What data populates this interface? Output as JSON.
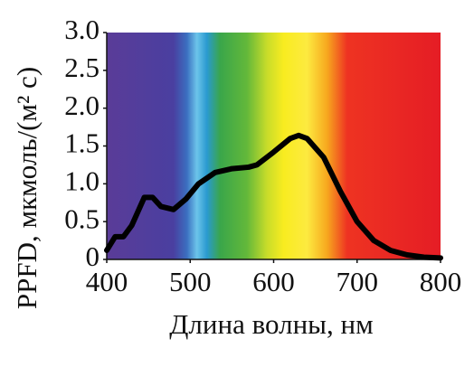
{
  "chart_data": {
    "type": "line",
    "x_label": "Длина волны, нм",
    "y_label": "PPFD, мкмоль/(м² с)",
    "x": [
      400,
      410,
      420,
      430,
      445,
      455,
      465,
      480,
      495,
      510,
      530,
      550,
      570,
      580,
      600,
      620,
      630,
      640,
      660,
      680,
      700,
      720,
      740,
      760,
      780,
      800
    ],
    "series": [
      {
        "color": "#000000",
        "values": [
          0.12,
          0.3,
          0.3,
          0.45,
          0.82,
          0.82,
          0.7,
          0.66,
          0.8,
          1.0,
          1.15,
          1.2,
          1.22,
          1.25,
          1.42,
          1.6,
          1.64,
          1.6,
          1.35,
          0.9,
          0.5,
          0.25,
          0.12,
          0.06,
          0.03,
          0.02
        ]
      }
    ],
    "xlim": [
      400,
      800
    ],
    "xticks": [
      400,
      500,
      600,
      700,
      800
    ],
    "ylim": [
      0,
      3
    ],
    "yticks": [
      0,
      0.5,
      {
        "value": 1,
        "label": "1.0"
      },
      1.5,
      {
        "value": 2,
        "label": "2.0"
      },
      2.5,
      {
        "value": 3,
        "label": "3.0"
      }
    ]
  }
}
